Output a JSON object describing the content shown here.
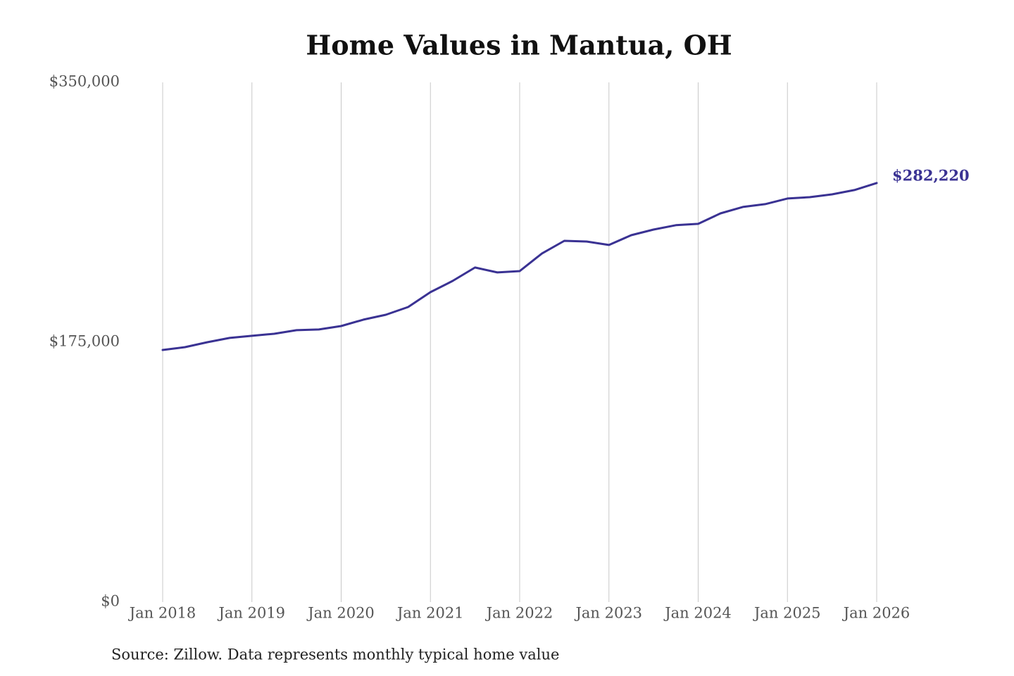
{
  "chart_data": {
    "type": "line",
    "title": "Home Values in Mantua, OH",
    "x": [
      "2018-01",
      "2018-04",
      "2018-07",
      "2018-10",
      "2019-01",
      "2019-04",
      "2019-07",
      "2019-10",
      "2020-01",
      "2020-04",
      "2020-07",
      "2020-10",
      "2021-01",
      "2021-04",
      "2021-07",
      "2021-10",
      "2022-01",
      "2022-04",
      "2022-07",
      "2022-10",
      "2023-01",
      "2023-04",
      "2023-07",
      "2023-10",
      "2024-01",
      "2024-04",
      "2024-07",
      "2024-10",
      "2025-01",
      "2025-04",
      "2025-07",
      "2025-10",
      "2026-01"
    ],
    "values": [
      169800,
      171700,
      175000,
      177900,
      179300,
      180700,
      183100,
      183600,
      185900,
      190200,
      193500,
      198700,
      208700,
      216300,
      225300,
      222000,
      222900,
      234800,
      243300,
      242800,
      240500,
      247100,
      250900,
      253800,
      254700,
      261800,
      266100,
      268000,
      271800,
      272700,
      274600,
      277500,
      282220
    ],
    "color": "#3a3293",
    "end_label": "$282,220",
    "xlim": [
      "2018-01",
      "2026-01"
    ],
    "xticks": [
      {
        "value": "2018-01",
        "label": "Jan 2018"
      },
      {
        "value": "2019-01",
        "label": "Jan 2019"
      },
      {
        "value": "2020-01",
        "label": "Jan 2020"
      },
      {
        "value": "2021-01",
        "label": "Jan 2021"
      },
      {
        "value": "2022-01",
        "label": "Jan 2022"
      },
      {
        "value": "2023-01",
        "label": "Jan 2023"
      },
      {
        "value": "2024-01",
        "label": "Jan 2024"
      },
      {
        "value": "2025-01",
        "label": "Jan 2025"
      },
      {
        "value": "2026-01",
        "label": "Jan 2026"
      }
    ],
    "ylim": [
      0,
      350000
    ],
    "yticks": [
      {
        "value": 0,
        "label": "$0"
      },
      {
        "value": 175000,
        "label": "$175,000"
      },
      {
        "value": 350000,
        "label": "$350,000"
      }
    ],
    "grid": "x",
    "source": "Source: Zillow. Data represents monthly typical home value"
  }
}
